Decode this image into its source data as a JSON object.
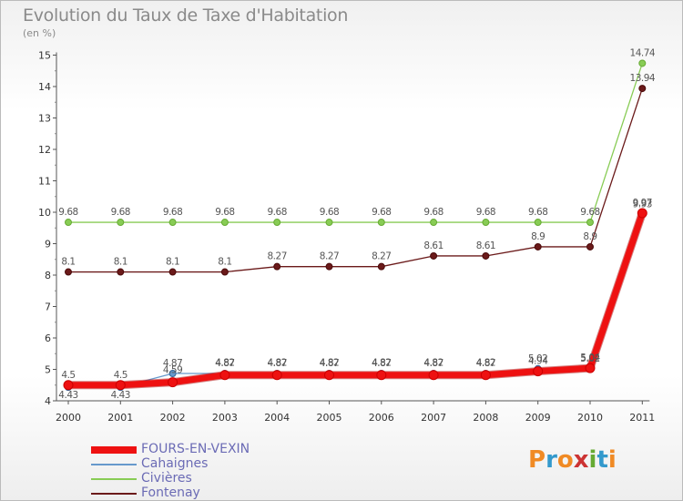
{
  "title": "Evolution du Taux de Taxe d'Habitation",
  "subtitle": "(en %)",
  "logo": {
    "text": "Proxiti",
    "colors": [
      "#f08a24",
      "#3399cc",
      "#f08a24",
      "#cc3333",
      "#66aa33",
      "#3399cc",
      "#f08a24"
    ]
  },
  "chart_data": {
    "type": "line",
    "x": [
      "2000",
      "2001",
      "2002",
      "2003",
      "2004",
      "2005",
      "2006",
      "2007",
      "2008",
      "2009",
      "2010",
      "2011"
    ],
    "yticks": [
      "4",
      "5",
      "6",
      "7",
      "8",
      "9",
      "10",
      "11",
      "12",
      "13",
      "14",
      "15"
    ],
    "ylim": [
      4,
      15
    ],
    "grid": false,
    "legend_position": "bottom-left",
    "series": [
      {
        "name": "FOURS-EN-VEXIN",
        "color": "#ee1111",
        "values": [
          4.5,
          4.5,
          4.59,
          4.82,
          4.82,
          4.82,
          4.82,
          4.82,
          4.82,
          4.94,
          5.04,
          9.97
        ],
        "labels": [
          "4.5",
          "4.5",
          "4.59",
          "4.82",
          "4.82",
          "4.82",
          "4.82",
          "4.82",
          "4.82",
          "4.94",
          "5.04",
          "9.97"
        ]
      },
      {
        "name": "Cahaignes",
        "color": "#6699cc",
        "values": [
          4.43,
          4.43,
          4.87,
          4.87,
          4.87,
          4.87,
          4.87,
          4.87,
          4.87,
          5.02,
          5.02,
          9.93
        ],
        "labels": [
          "4.43",
          "4.43",
          "4.87",
          "4.87",
          "4.87",
          "4.87",
          "4.87",
          "4.87",
          "4.87",
          "5.02",
          "5.02",
          "9.93"
        ]
      },
      {
        "name": "Civières",
        "color": "#88cc55",
        "values": [
          9.68,
          9.68,
          9.68,
          9.68,
          9.68,
          9.68,
          9.68,
          9.68,
          9.68,
          9.68,
          9.68,
          14.74
        ],
        "labels": [
          "9.68",
          "9.68",
          "9.68",
          "9.68",
          "9.68",
          "9.68",
          "9.68",
          "9.68",
          "9.68",
          "9.68",
          "9.68",
          "14.74"
        ]
      },
      {
        "name": "Fontenay",
        "color": "#6b1a1a",
        "values": [
          8.1,
          8.1,
          8.1,
          8.1,
          8.27,
          8.27,
          8.27,
          8.61,
          8.61,
          8.9,
          8.9,
          13.94
        ],
        "labels": [
          "8.1",
          "8.1",
          "8.1",
          "8.1",
          "8.27",
          "8.27",
          "8.27",
          "8.61",
          "8.61",
          "8.9",
          "8.9",
          "13.94"
        ]
      }
    ]
  }
}
